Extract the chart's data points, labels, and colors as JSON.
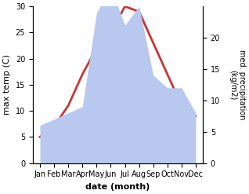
{
  "months": [
    "Jan",
    "Feb",
    "Mar",
    "Apr",
    "May",
    "Jun",
    "Jul",
    "Aug",
    "Sep",
    "Oct",
    "Nov",
    "Dec"
  ],
  "temperature": [
    5,
    7,
    11,
    17,
    22,
    25,
    30,
    29,
    23,
    17,
    11,
    9
  ],
  "precipitation": [
    6,
    7,
    8,
    9,
    24,
    28,
    22,
    25,
    14,
    12,
    12,
    8
  ],
  "temp_color": "#cc3333",
  "precip_color": "#b8c8ee",
  "ylabel_left": "max temp (C)",
  "ylabel_right": "med. precipitation\n(kg/m2)",
  "xlabel": "date (month)",
  "ylim_left": [
    0,
    30
  ],
  "ylim_right": [
    0,
    25
  ],
  "left_ticks": [
    0,
    5,
    10,
    15,
    20,
    25,
    30
  ],
  "right_ticks": [
    0,
    5,
    10,
    15,
    20
  ]
}
